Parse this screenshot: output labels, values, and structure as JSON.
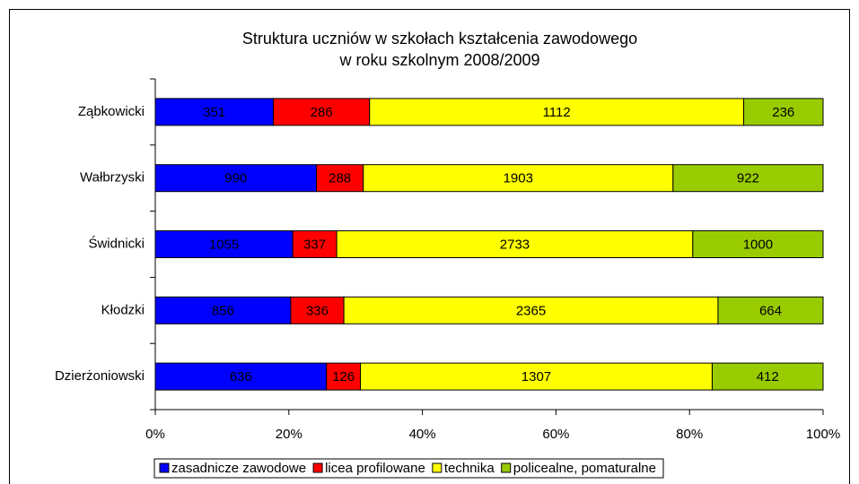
{
  "chart_data": {
    "type": "bar",
    "orientation": "horizontal",
    "stacking": "percent",
    "title": [
      "Struktura uczniów w szkołach kształcenia zawodowego",
      "w roku szkolnym 2008/2009"
    ],
    "categories": [
      "Ząbkowicki",
      "Wałbrzyski",
      "Świdnicki",
      "Kłodzki",
      "Dzierżoniowski"
    ],
    "series": [
      {
        "name": "zasadnicze zawodowe",
        "color": "#0000ff",
        "values": [
          351,
          990,
          1055,
          856,
          636
        ]
      },
      {
        "name": "licea profilowane",
        "color": "#ff0000",
        "values": [
          286,
          288,
          337,
          336,
          126
        ]
      },
      {
        "name": "technika",
        "color": "#ffff00",
        "values": [
          1112,
          1903,
          2733,
          2365,
          1307
        ]
      },
      {
        "name": "policealne, pomaturalne",
        "color": "#99cc00",
        "values": [
          236,
          922,
          1000,
          664,
          412
        ]
      }
    ],
    "xlim": [
      0,
      100
    ],
    "xticks": [
      {
        "value": 0,
        "label": "0%"
      },
      {
        "value": 20,
        "label": "20%"
      },
      {
        "value": 40,
        "label": "40%"
      },
      {
        "value": 60,
        "label": "60%"
      },
      {
        "value": 80,
        "label": "80%"
      },
      {
        "value": 100,
        "label": "100%"
      }
    ],
    "legend": "bottom"
  }
}
